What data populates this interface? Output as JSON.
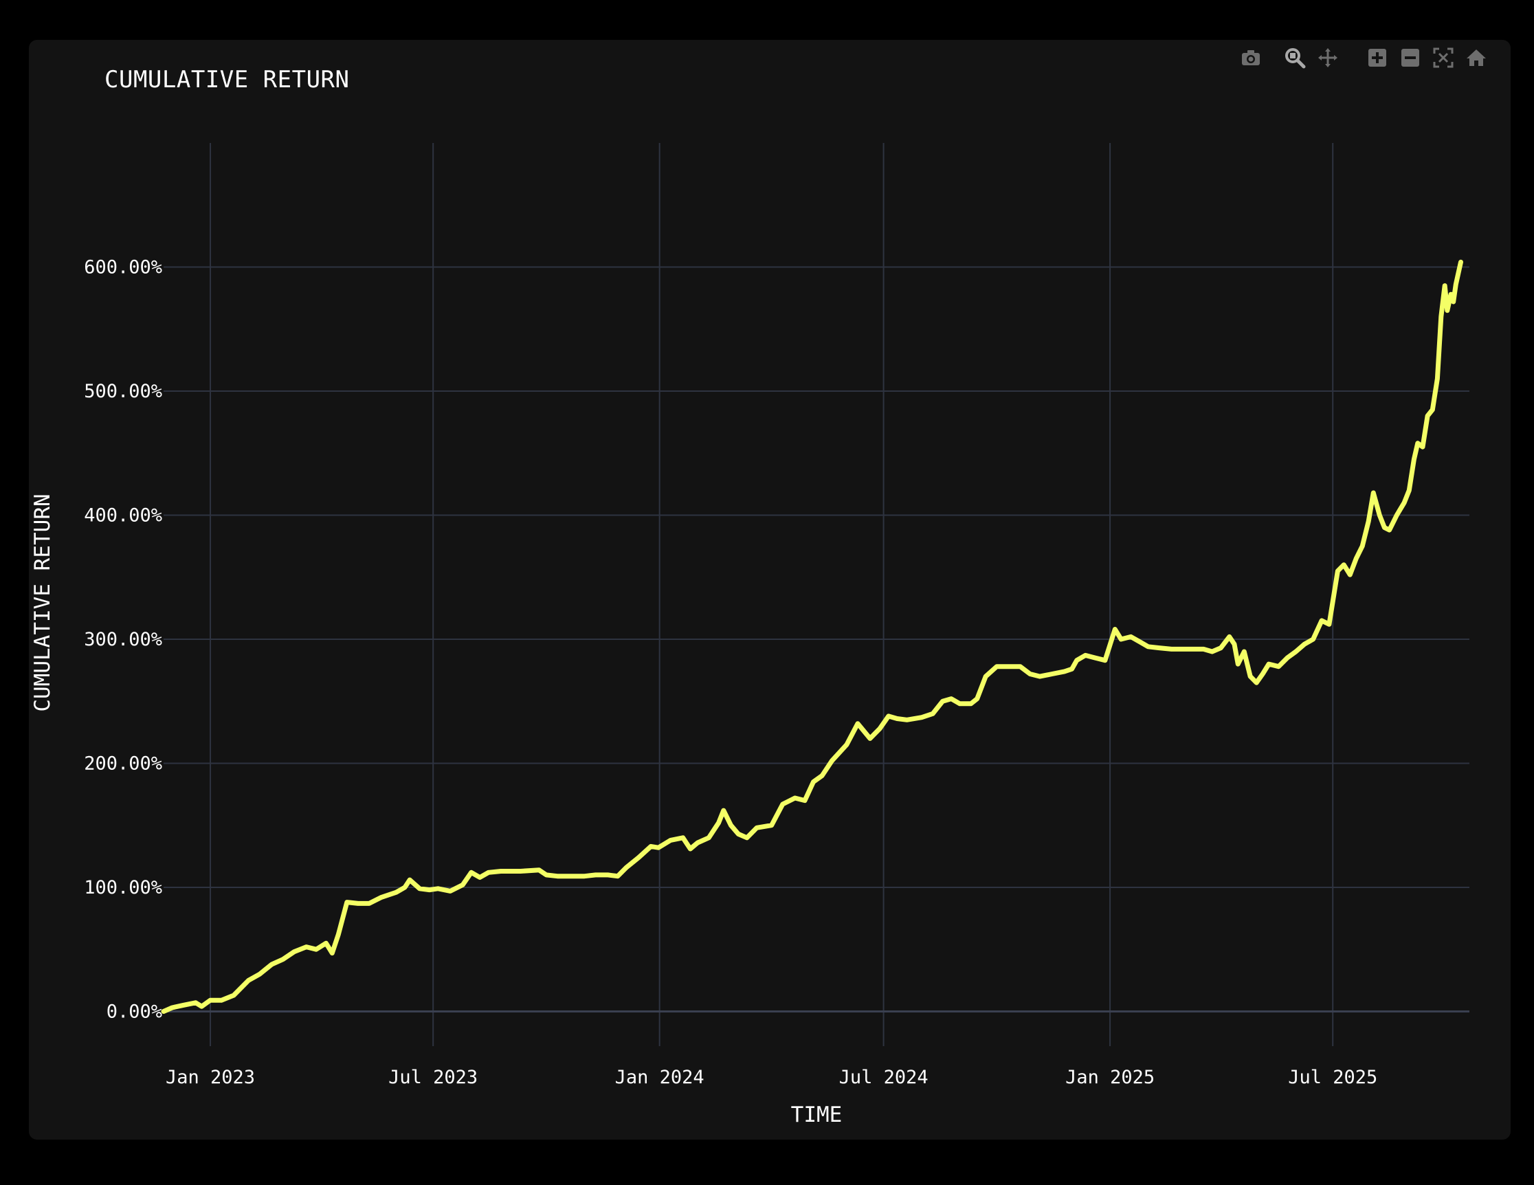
{
  "chart_title": "CUMULATIVE RETURN",
  "colors": {
    "background": "#131313",
    "grid": "#2e3340",
    "line": "#f4ff66",
    "text": "#ffffff",
    "icon": "#6e6e6e",
    "icon_active": "#a9a9a9"
  },
  "modebar": {
    "icons": [
      "camera-icon",
      "zoom-icon",
      "pan-icon",
      "zoom-in-icon",
      "zoom-out-icon",
      "autoscale-icon",
      "home-icon"
    ]
  },
  "chart_data": {
    "type": "line",
    "title": "CUMULATIVE RETURN",
    "xlabel": "TIME",
    "ylabel": "CUMULATIVE RETURN",
    "xlim": [
      "2022-11-24",
      "2025-10-20"
    ],
    "ylim": [
      -28,
      700
    ],
    "x_ticks": [
      {
        "date": "2023-01-01",
        "label": "Jan 2023"
      },
      {
        "date": "2023-07-01",
        "label": "Jul 2023"
      },
      {
        "date": "2024-01-01",
        "label": "Jan 2024"
      },
      {
        "date": "2024-07-01",
        "label": "Jul 2024"
      },
      {
        "date": "2025-01-01",
        "label": "Jan 2025"
      },
      {
        "date": "2025-07-01",
        "label": "Jul 2025"
      }
    ],
    "y_ticks": [
      {
        "value": 0,
        "label": "0.00%"
      },
      {
        "value": 100,
        "label": "100.00%"
      },
      {
        "value": 200,
        "label": "200.00%"
      },
      {
        "value": 300,
        "label": "300.00%"
      },
      {
        "value": 400,
        "label": "400.00%"
      },
      {
        "value": 500,
        "label": "500.00%"
      },
      {
        "value": 600,
        "label": "600.00%"
      }
    ],
    "grid": true,
    "legend": "none",
    "series": [
      {
        "values_unit": "percent",
        "points": [
          [
            "2022-11-24",
            0
          ],
          [
            "2022-12-01",
            3
          ],
          [
            "2022-12-10",
            5
          ],
          [
            "2022-12-20",
            7
          ],
          [
            "2022-12-25",
            4
          ],
          [
            "2023-01-01",
            9
          ],
          [
            "2023-01-10",
            9
          ],
          [
            "2023-01-20",
            13
          ],
          [
            "2023-01-25",
            18
          ],
          [
            "2023-02-01",
            25
          ],
          [
            "2023-02-10",
            30
          ],
          [
            "2023-02-20",
            38
          ],
          [
            "2023-03-01",
            42
          ],
          [
            "2023-03-10",
            48
          ],
          [
            "2023-03-20",
            52
          ],
          [
            "2023-03-28",
            50
          ],
          [
            "2023-04-05",
            55
          ],
          [
            "2023-04-10",
            47
          ],
          [
            "2023-04-15",
            62
          ],
          [
            "2023-04-22",
            88
          ],
          [
            "2023-05-01",
            87
          ],
          [
            "2023-05-10",
            87
          ],
          [
            "2023-05-20",
            92
          ],
          [
            "2023-06-01",
            96
          ],
          [
            "2023-06-08",
            100
          ],
          [
            "2023-06-12",
            106
          ],
          [
            "2023-06-20",
            99
          ],
          [
            "2023-06-28",
            98
          ],
          [
            "2023-07-05",
            99
          ],
          [
            "2023-07-15",
            97
          ],
          [
            "2023-07-25",
            102
          ],
          [
            "2023-08-01",
            112
          ],
          [
            "2023-08-08",
            108
          ],
          [
            "2023-08-15",
            112
          ],
          [
            "2023-08-25",
            113
          ],
          [
            "2023-09-10",
            113
          ],
          [
            "2023-09-25",
            114
          ],
          [
            "2023-10-01",
            110
          ],
          [
            "2023-10-10",
            109
          ],
          [
            "2023-10-20",
            109
          ],
          [
            "2023-11-01",
            109
          ],
          [
            "2023-11-10",
            110
          ],
          [
            "2023-11-20",
            110
          ],
          [
            "2023-11-28",
            109
          ],
          [
            "2023-12-05",
            116
          ],
          [
            "2023-12-15",
            124
          ],
          [
            "2023-12-25",
            133
          ],
          [
            "2023-12-31",
            132
          ],
          [
            "2024-01-10",
            138
          ],
          [
            "2024-01-20",
            140
          ],
          [
            "2024-01-26",
            131
          ],
          [
            "2024-02-01",
            136
          ],
          [
            "2024-02-10",
            140
          ],
          [
            "2024-02-18",
            152
          ],
          [
            "2024-02-22",
            162
          ],
          [
            "2024-02-28",
            150
          ],
          [
            "2024-03-05",
            143
          ],
          [
            "2024-03-12",
            140
          ],
          [
            "2024-03-20",
            148
          ],
          [
            "2024-04-01",
            150
          ],
          [
            "2024-04-10",
            167
          ],
          [
            "2024-04-20",
            172
          ],
          [
            "2024-04-28",
            170
          ],
          [
            "2024-05-05",
            185
          ],
          [
            "2024-05-12",
            190
          ],
          [
            "2024-05-20",
            202
          ],
          [
            "2024-06-01",
            215
          ],
          [
            "2024-06-10",
            232
          ],
          [
            "2024-06-15",
            226
          ],
          [
            "2024-06-20",
            220
          ],
          [
            "2024-06-28",
            228
          ],
          [
            "2024-07-05",
            238
          ],
          [
            "2024-07-12",
            236
          ],
          [
            "2024-07-20",
            235
          ],
          [
            "2024-08-01",
            237
          ],
          [
            "2024-08-10",
            240
          ],
          [
            "2024-08-18",
            250
          ],
          [
            "2024-08-25",
            252
          ],
          [
            "2024-09-01",
            248
          ],
          [
            "2024-09-10",
            248
          ],
          [
            "2024-09-15",
            252
          ],
          [
            "2024-09-22",
            270
          ],
          [
            "2024-10-01",
            278
          ],
          [
            "2024-10-10",
            278
          ],
          [
            "2024-10-20",
            278
          ],
          [
            "2024-10-28",
            272
          ],
          [
            "2024-11-05",
            270
          ],
          [
            "2024-11-15",
            272
          ],
          [
            "2024-11-25",
            274
          ],
          [
            "2024-12-01",
            276
          ],
          [
            "2024-12-05",
            283
          ],
          [
            "2024-12-12",
            287
          ],
          [
            "2024-12-20",
            285
          ],
          [
            "2024-12-28",
            283
          ],
          [
            "2025-01-05",
            308
          ],
          [
            "2025-01-10",
            300
          ],
          [
            "2025-01-18",
            302
          ],
          [
            "2025-01-25",
            298
          ],
          [
            "2025-02-01",
            294
          ],
          [
            "2025-02-10",
            293
          ],
          [
            "2025-02-20",
            292
          ],
          [
            "2025-03-01",
            292
          ],
          [
            "2025-03-10",
            292
          ],
          [
            "2025-03-18",
            292
          ],
          [
            "2025-03-25",
            290
          ],
          [
            "2025-04-01",
            293
          ],
          [
            "2025-04-08",
            302
          ],
          [
            "2025-04-12",
            296
          ],
          [
            "2025-04-15",
            280
          ],
          [
            "2025-04-20",
            290
          ],
          [
            "2025-04-25",
            270
          ],
          [
            "2025-04-30",
            265
          ],
          [
            "2025-05-05",
            272
          ],
          [
            "2025-05-10",
            280
          ],
          [
            "2025-05-18",
            278
          ],
          [
            "2025-05-25",
            285
          ],
          [
            "2025-06-01",
            290
          ],
          [
            "2025-06-08",
            296
          ],
          [
            "2025-06-15",
            300
          ],
          [
            "2025-06-22",
            315
          ],
          [
            "2025-06-28",
            312
          ],
          [
            "2025-07-05",
            355
          ],
          [
            "2025-07-10",
            360
          ],
          [
            "2025-07-15",
            352
          ],
          [
            "2025-07-20",
            365
          ],
          [
            "2025-07-25",
            375
          ],
          [
            "2025-07-30",
            395
          ],
          [
            "2025-08-03",
            418
          ],
          [
            "2025-08-08",
            400
          ],
          [
            "2025-08-12",
            390
          ],
          [
            "2025-08-16",
            388
          ],
          [
            "2025-08-22",
            400
          ],
          [
            "2025-08-28",
            410
          ],
          [
            "2025-09-01",
            420
          ],
          [
            "2025-09-05",
            445
          ],
          [
            "2025-09-08",
            458
          ],
          [
            "2025-09-12",
            455
          ],
          [
            "2025-09-16",
            480
          ],
          [
            "2025-09-20",
            485
          ],
          [
            "2025-09-24",
            510
          ],
          [
            "2025-09-27",
            560
          ],
          [
            "2025-09-30",
            585
          ],
          [
            "2025-10-02",
            565
          ],
          [
            "2025-10-05",
            578
          ],
          [
            "2025-10-07",
            572
          ],
          [
            "2025-10-09",
            586
          ],
          [
            "2025-10-11",
            595
          ],
          [
            "2025-10-13",
            604
          ]
        ]
      }
    ]
  }
}
